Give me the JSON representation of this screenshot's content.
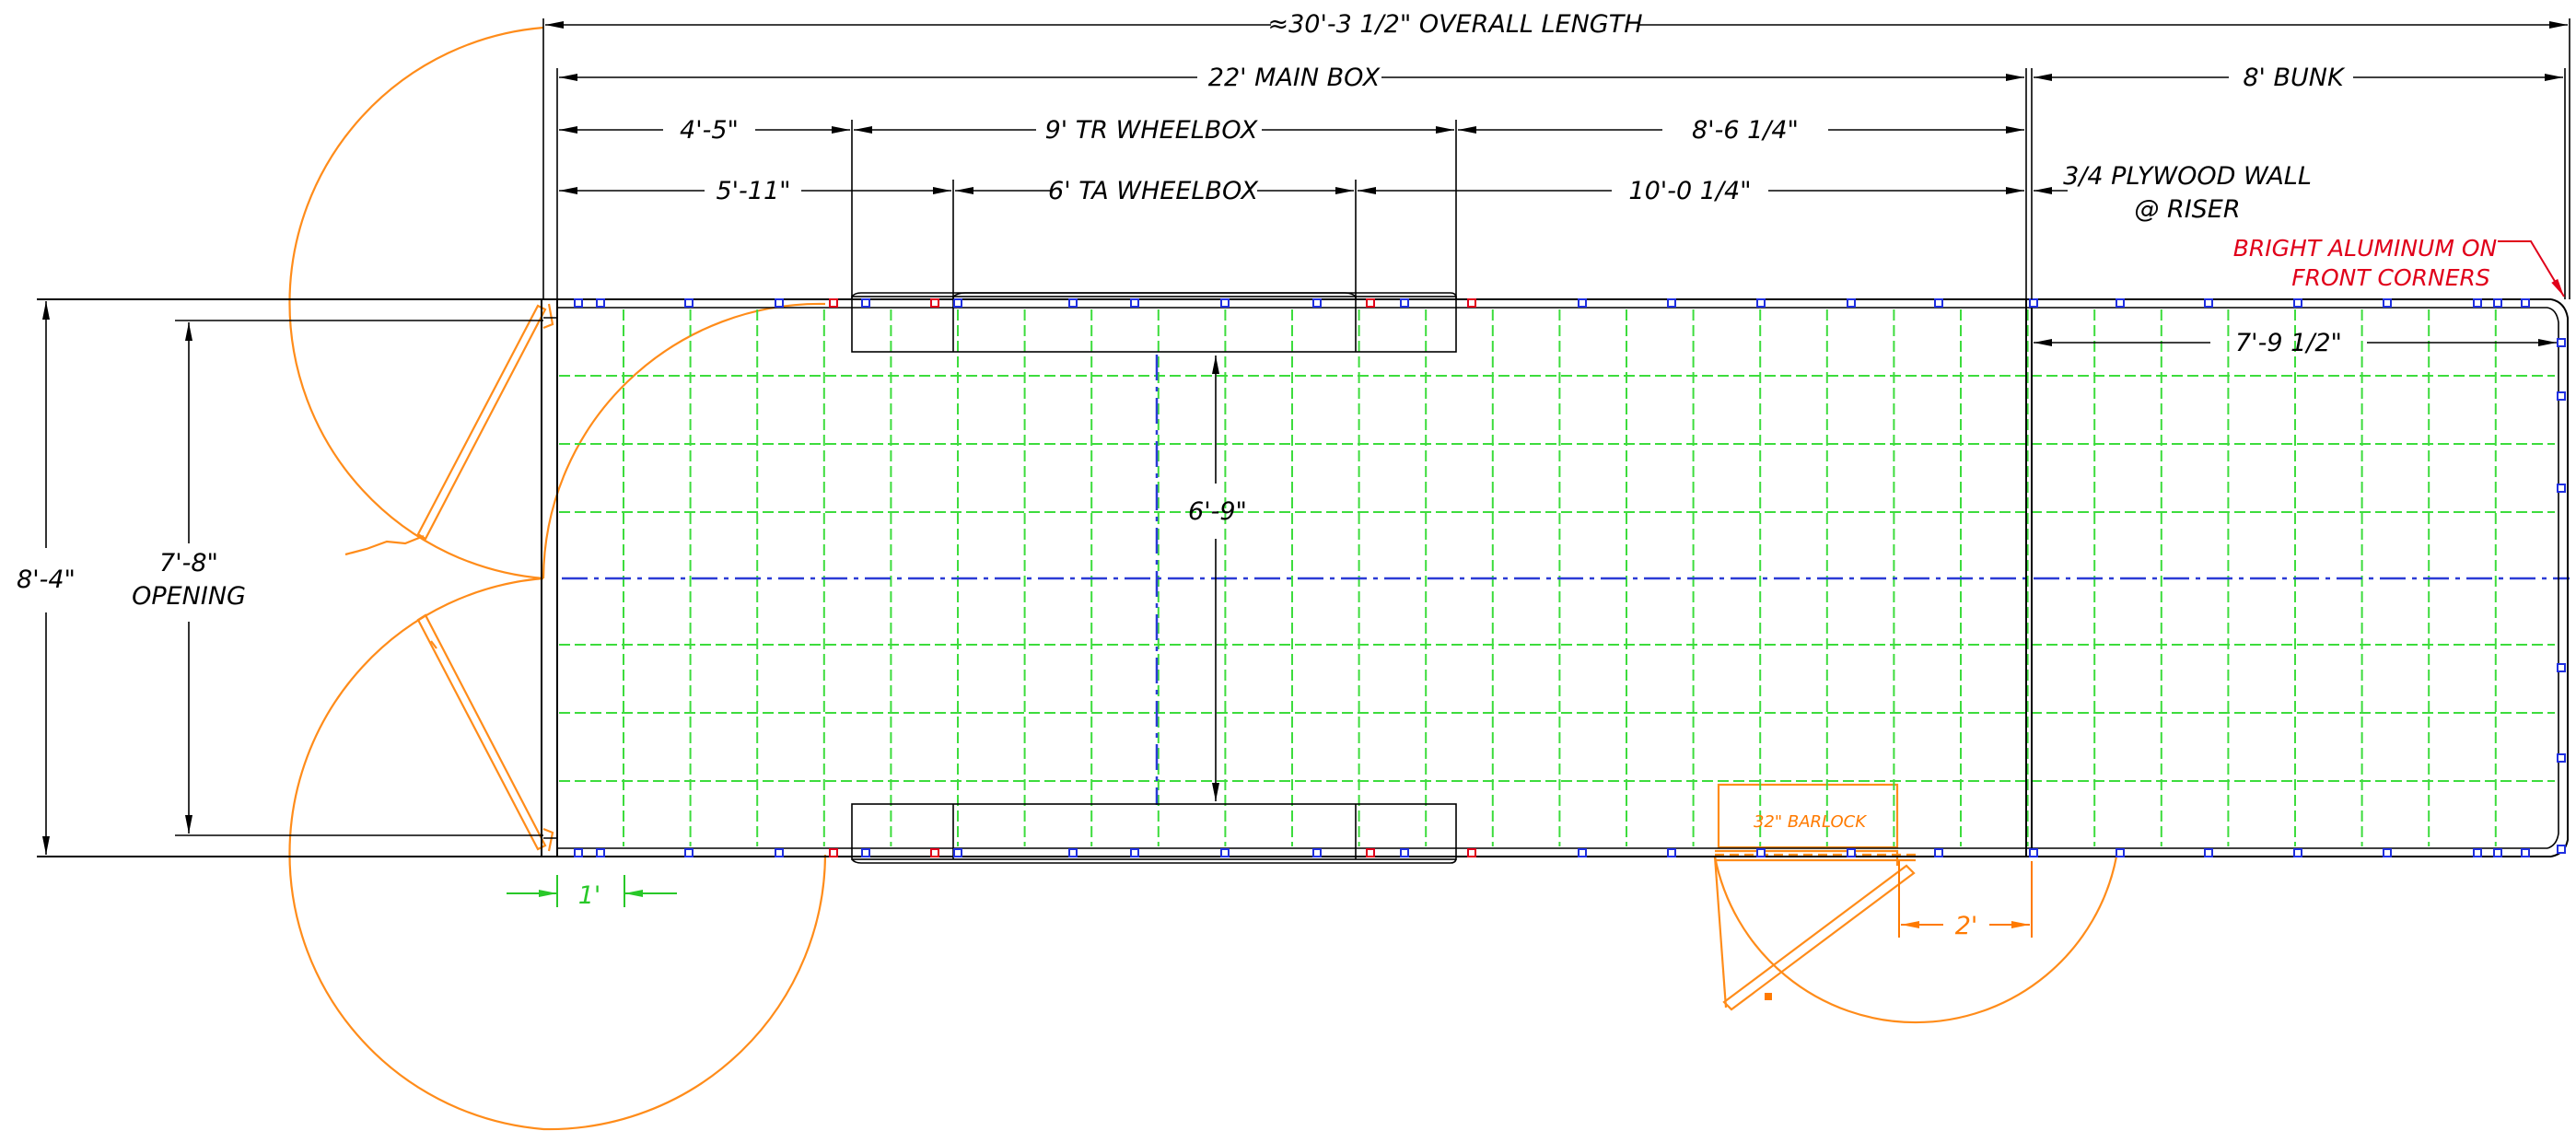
{
  "dimensions": {
    "overall_length": "≈30'-3 1/2\" OVERALL LENGTH",
    "main_box": "22' MAIN BOX",
    "bunk": "8' BUNK",
    "front_offset_1": "4'-5\"",
    "tr_wheelbox": "9' TR WHEELBOX",
    "tr_to_wall": "8'-6 1/4\"",
    "front_offset_2": "5'-11\"",
    "ta_wheelbox": "6' TA WHEELBOX",
    "ta_to_wall": "10'-0 1/4\"",
    "bunk_interior": "7'-9 1/2\"",
    "interior_width": "6'-9\"",
    "overall_width": "8'-4\"",
    "opening_width": "7'-8\"",
    "opening_label": "OPENING",
    "door_setback": "1'",
    "side_door_offset": "2'"
  },
  "notes": {
    "plywood_wall_line1": "3/4 PLYWOOD WALL",
    "plywood_wall_line2": "@ RISER",
    "aluminum_line1": "BRIGHT ALUMINUM ON",
    "aluminum_line2": "FRONT CORNERS",
    "barlock": "32\" BARLOCK"
  },
  "colors": {
    "outline": "#000000",
    "doors": "#ff8c1a",
    "floor_grid": "#3ddc3d",
    "centerline": "#2b3bd6",
    "note": "#e0001a"
  }
}
